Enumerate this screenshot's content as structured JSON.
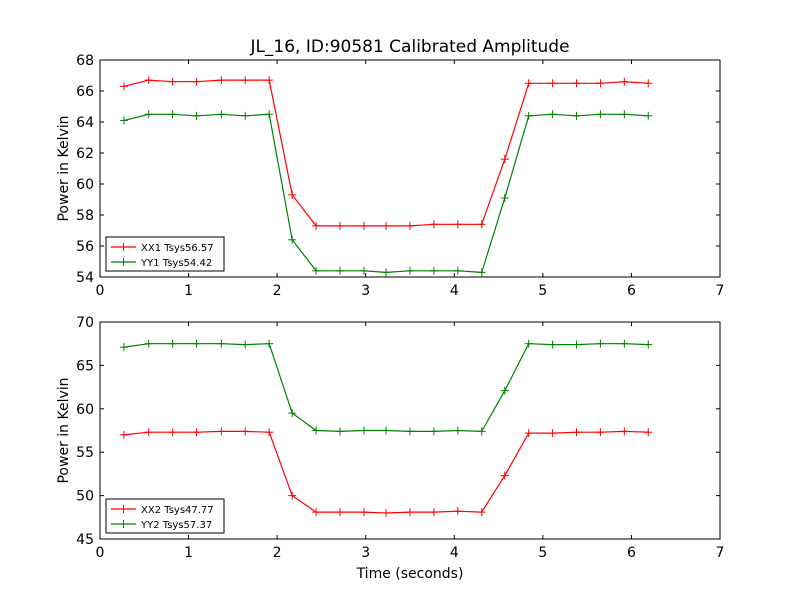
{
  "figure": {
    "title": "JL_16, ID:90581 Calibrated Amplitude",
    "xlabel": "Time (seconds)"
  },
  "chart_data": [
    {
      "type": "line",
      "ylabel": "Power in Kelvin",
      "xlim": [
        0,
        7
      ],
      "ylim": [
        54,
        68
      ],
      "xticks": [
        0,
        1,
        2,
        3,
        4,
        5,
        6,
        7
      ],
      "yticks": [
        54,
        56,
        58,
        60,
        62,
        64,
        66,
        68
      ],
      "legend_position": "lower-left",
      "x": [
        0.27,
        0.55,
        0.82,
        1.09,
        1.37,
        1.64,
        1.91,
        2.17,
        2.44,
        2.71,
        2.98,
        3.23,
        3.5,
        3.77,
        4.04,
        4.31,
        4.57,
        4.84,
        5.11,
        5.38,
        5.65,
        5.92,
        6.19
      ],
      "series": [
        {
          "name": "XX1 Tsys56.57",
          "color": "#ff0000",
          "values": [
            66.3,
            66.7,
            66.6,
            66.6,
            66.7,
            66.7,
            66.7,
            59.3,
            57.3,
            57.3,
            57.3,
            57.3,
            57.3,
            57.4,
            57.4,
            57.4,
            61.6,
            66.5,
            66.5,
            66.5,
            66.5,
            66.6,
            66.5
          ]
        },
        {
          "name": "YY1 Tsys54.42",
          "color": "#008000",
          "values": [
            64.1,
            64.5,
            64.5,
            64.4,
            64.5,
            64.4,
            64.5,
            56.4,
            54.4,
            54.4,
            54.4,
            54.3,
            54.4,
            54.4,
            54.4,
            54.3,
            59.1,
            64.4,
            64.5,
            64.4,
            64.5,
            64.5,
            64.4
          ]
        }
      ]
    },
    {
      "type": "line",
      "ylabel": "Power in Kelvin",
      "xlim": [
        0,
        7
      ],
      "ylim": [
        45,
        70
      ],
      "xticks": [
        0,
        1,
        2,
        3,
        4,
        5,
        6,
        7
      ],
      "yticks": [
        45,
        50,
        55,
        60,
        65,
        70
      ],
      "legend_position": "lower-left",
      "x": [
        0.27,
        0.55,
        0.82,
        1.09,
        1.37,
        1.64,
        1.91,
        2.17,
        2.44,
        2.71,
        2.98,
        3.23,
        3.5,
        3.77,
        4.04,
        4.31,
        4.57,
        4.84,
        5.11,
        5.38,
        5.65,
        5.92,
        6.19
      ],
      "series": [
        {
          "name": "XX2 Tsys47.77",
          "color": "#ff0000",
          "values": [
            57.0,
            57.3,
            57.3,
            57.3,
            57.4,
            57.4,
            57.3,
            50.0,
            48.1,
            48.1,
            48.1,
            48.0,
            48.1,
            48.1,
            48.2,
            48.1,
            52.3,
            57.2,
            57.2,
            57.3,
            57.3,
            57.4,
            57.3
          ]
        },
        {
          "name": "YY2 Tsys57.37",
          "color": "#008000",
          "values": [
            67.1,
            67.5,
            67.5,
            67.5,
            67.5,
            67.4,
            67.5,
            59.5,
            57.5,
            57.4,
            57.5,
            57.5,
            57.4,
            57.4,
            57.5,
            57.4,
            62.1,
            67.5,
            67.4,
            67.4,
            67.5,
            67.5,
            67.4
          ]
        }
      ]
    }
  ]
}
